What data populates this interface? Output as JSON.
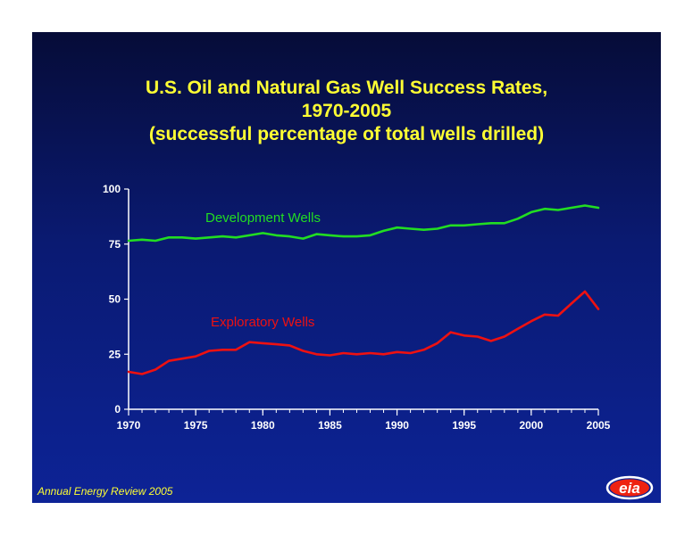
{
  "title_lines": [
    "U.S. Oil and Natural Gas Well Success Rates,",
    "1970-2005",
    "(successful percentage of total wells drilled)"
  ],
  "footer": "Annual Energy Review 2005",
  "logo_text": "eia",
  "colors": {
    "development": "#22dd22",
    "exploratory": "#ee1111",
    "title": "#ffff33",
    "axis": "#ffffff"
  },
  "chart_data": {
    "type": "line",
    "title": "U.S. Oil and Natural Gas Well Success Rates, 1970-2005 (successful percentage of total wells drilled)",
    "xlabel": "",
    "ylabel": "",
    "xlim": [
      1970,
      2005
    ],
    "ylim": [
      0,
      100
    ],
    "xticks": [
      1970,
      1975,
      1980,
      1985,
      1990,
      1995,
      2000,
      2005
    ],
    "yticks": [
      0,
      25,
      50,
      75,
      100
    ],
    "grid": false,
    "x": [
      1970,
      1971,
      1972,
      1973,
      1974,
      1975,
      1976,
      1977,
      1978,
      1979,
      1980,
      1981,
      1982,
      1983,
      1984,
      1985,
      1986,
      1987,
      1988,
      1989,
      1990,
      1991,
      1992,
      1993,
      1994,
      1995,
      1996,
      1997,
      1998,
      1999,
      2000,
      2001,
      2002,
      2003,
      2004,
      2005
    ],
    "series": [
      {
        "name": "Development Wells",
        "values": [
          76.5,
          77,
          76.5,
          78,
          78,
          77.5,
          78,
          78.5,
          78,
          79,
          80,
          79,
          78.5,
          77.5,
          79.5,
          79,
          78.5,
          78.5,
          79,
          81,
          82.5,
          82,
          81.5,
          82,
          83.5,
          83.5,
          84,
          84.5,
          84.5,
          86.5,
          89.5,
          91,
          90.5,
          91.5,
          92.5,
          91.5
        ]
      },
      {
        "name": "Exploratory Wells",
        "values": [
          17,
          16,
          18,
          22,
          23,
          24,
          26.5,
          27,
          27,
          30.5,
          30,
          29.5,
          29,
          26.5,
          25,
          24.5,
          25.5,
          25,
          25.5,
          25,
          26,
          25.5,
          27,
          30,
          35,
          33.5,
          33,
          31,
          33,
          36.5,
          40,
          43,
          42.5,
          48,
          53.5,
          45.5
        ]
      }
    ]
  }
}
